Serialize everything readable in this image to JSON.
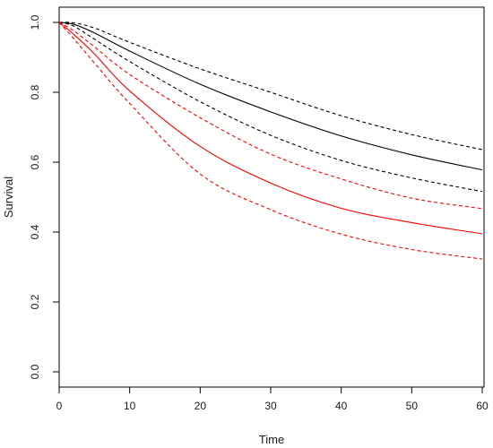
{
  "chart_data": {
    "type": "line",
    "title": "",
    "xlabel": "Time",
    "ylabel": "Survival",
    "xlim": [
      0,
      60
    ],
    "ylim": [
      0,
      1.0
    ],
    "x_ticks": [
      "0",
      "10",
      "20",
      "30",
      "40",
      "50",
      "60"
    ],
    "y_ticks": [
      "0.0",
      "0.2",
      "0.4",
      "0.6",
      "0.8",
      "1.0"
    ],
    "grid": false,
    "legend": "none",
    "x": [
      0,
      2,
      5,
      10,
      20,
      30,
      40,
      50,
      60
    ],
    "series": [
      {
        "color": "#000000",
        "dash": "solid",
        "values": [
          1.0,
          0.995,
          0.97,
          0.918,
          0.823,
          0.744,
          0.675,
          0.621,
          0.578
        ]
      },
      {
        "color": "#000000",
        "dash": "dashed",
        "values": [
          1.0,
          0.999,
          0.984,
          0.943,
          0.867,
          0.8,
          0.733,
          0.679,
          0.636
        ]
      },
      {
        "color": "#000000",
        "dash": "dashed",
        "values": [
          1.0,
          0.99,
          0.952,
          0.888,
          0.773,
          0.677,
          0.605,
          0.555,
          0.516
        ]
      },
      {
        "color": "#ff0000",
        "dash": "solid",
        "values": [
          1.0,
          0.967,
          0.91,
          0.804,
          0.645,
          0.54,
          0.468,
          0.427,
          0.395
        ]
      },
      {
        "color": "#ff0000",
        "dash": "dashed",
        "values": [
          1.0,
          0.977,
          0.93,
          0.851,
          0.727,
          0.623,
          0.552,
          0.497,
          0.467
        ]
      },
      {
        "color": "#ff0000",
        "dash": "dashed",
        "values": [
          1.0,
          0.955,
          0.884,
          0.768,
          0.566,
          0.464,
          0.394,
          0.35,
          0.323
        ]
      }
    ]
  }
}
